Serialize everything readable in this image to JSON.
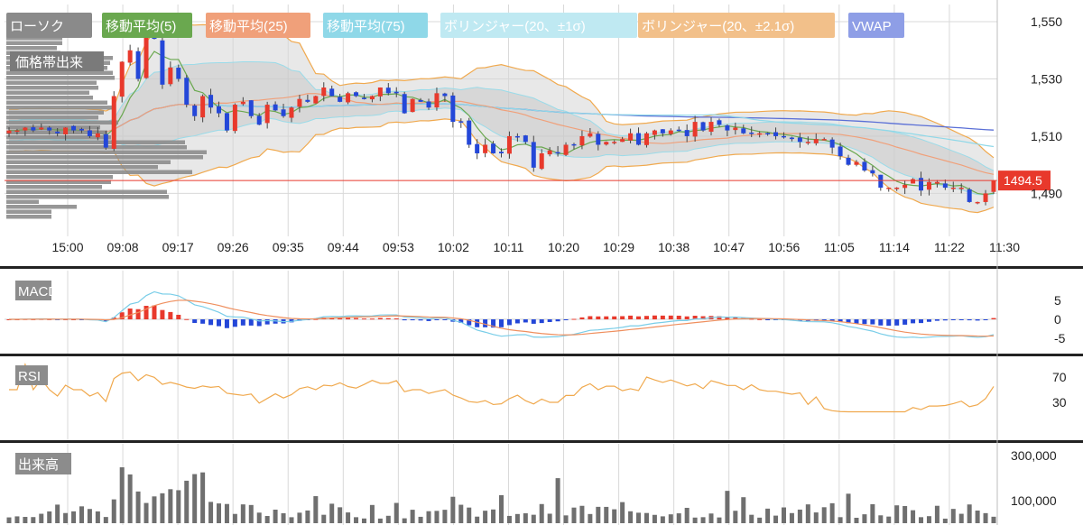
{
  "chart_data": {
    "type": "candlestick",
    "legend": [
      {
        "label": "ローソク",
        "color": "#8a8a8a"
      },
      {
        "label": "移動平均(5)",
        "color": "#6aa84f"
      },
      {
        "label": "移動平均(25)",
        "color": "#f0a07a"
      },
      {
        "label": "移動平均(75)",
        "color": "#8fd8e8"
      },
      {
        "label": "ボリンジャー(20、±1σ)",
        "color": "#bfe9f2"
      },
      {
        "label": "ボリンジャー(20、±2.1σ)",
        "color": "#f2c08a"
      },
      {
        "label": "VWAP",
        "color": "#8e9ee6"
      }
    ],
    "price_axis": {
      "ticks": [
        "1,550",
        "1,530",
        "1,510",
        "1,490"
      ],
      "tick_values": [
        1550,
        1530,
        1510,
        1490
      ],
      "ylim": [
        1475,
        1556
      ]
    },
    "current_price": {
      "label": "1494.5",
      "value": 1494.5,
      "color": "#e8392c"
    },
    "volume_profile_label": "価格帯出来",
    "x_labels": [
      "15:00",
      "09:08",
      "09:17",
      "09:26",
      "09:35",
      "09:44",
      "09:53",
      "10:02",
      "10:11",
      "10:20",
      "10:29",
      "10:38",
      "10:47",
      "10:56",
      "11:05",
      "11:14",
      "11:22",
      "11:30"
    ],
    "close_series": [
      1512,
      1512,
      1513,
      1512,
      1513,
      1512,
      1511,
      1513,
      1512,
      1512,
      1510,
      1511,
      1506,
      1524,
      1536,
      1540,
      1530,
      1548,
      1544,
      1528,
      1534,
      1530,
      1521,
      1517,
      1524,
      1520,
      1518,
      1512,
      1521,
      1522,
      1517,
      1514,
      1521,
      1519,
      1517,
      1520,
      1523,
      1522,
      1524,
      1527,
      1524,
      1522,
      1525,
      1524,
      1523,
      1524,
      1527,
      1525,
      1525,
      1518,
      1523,
      1522,
      1520,
      1525,
      1524,
      1515,
      1515,
      1507,
      1504,
      1507,
      1504,
      1504,
      1510,
      1510,
      1508,
      1499,
      1504,
      1505,
      1504,
      1507,
      1507,
      1510,
      1511,
      1507,
      1508,
      1508,
      1509,
      1511,
      1507,
      1511,
      1512,
      1511,
      1512,
      1512,
      1510,
      1515,
      1512,
      1515,
      1514,
      1512,
      1513,
      1511,
      1511,
      1511,
      1511,
      1510,
      1510,
      1509,
      1508,
      1508,
      1509,
      1509,
      1506,
      1503,
      1500,
      1501,
      1498,
      1497,
      1492,
      1492,
      1492,
      1493,
      1495,
      1491,
      1494,
      1494,
      1492,
      1492,
      1492,
      1487,
      1487,
      1490,
      1494.5
    ],
    "macd": {
      "ticks": [
        "5",
        "0",
        "-5"
      ],
      "tick_values": [
        5,
        0,
        -5
      ]
    },
    "rsi": {
      "ticks": [
        "70",
        "30"
      ],
      "tick_values": [
        70,
        30
      ]
    },
    "volume": {
      "ticks": [
        "300,000",
        "100,000"
      ],
      "tick_values": [
        300000,
        100000
      ]
    },
    "panes": {
      "macd_label": "MACD",
      "rsi_label": "RSI",
      "volume_label": "出来高"
    }
  }
}
